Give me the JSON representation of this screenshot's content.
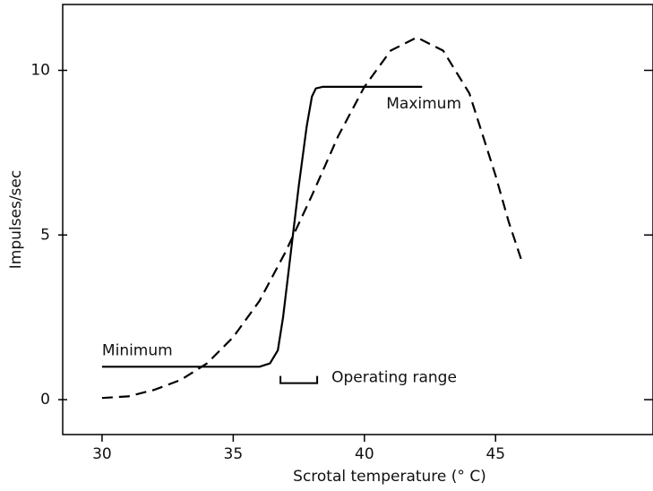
{
  "chart_data": {
    "type": "line",
    "x_label": "Scrotal temperature (° C)",
    "y_label": "Impulses/sec",
    "xlim": [
      28.5,
      51
    ],
    "xticks": [
      30,
      35,
      40,
      45
    ],
    "ylim": [
      -1.06,
      12
    ],
    "yticks": [
      0,
      5,
      10
    ],
    "series": [
      {
        "style": "solid",
        "color": "#000000",
        "x": [
          30,
          36.0,
          36.4,
          36.7,
          36.9,
          37.2,
          37.5,
          37.8,
          38.0,
          38.15,
          38.4,
          42.2
        ],
        "values": [
          1.0,
          1.0,
          1.1,
          1.5,
          2.5,
          4.5,
          6.5,
          8.3,
          9.2,
          9.45,
          9.5,
          9.5
        ]
      },
      {
        "style": "dashed",
        "color": "#000000",
        "x": [
          30,
          31,
          32,
          33,
          34,
          35,
          36,
          37,
          38,
          39,
          40,
          41,
          42,
          43,
          44,
          45,
          45.5,
          46
        ],
        "values": [
          0.05,
          0.1,
          0.3,
          0.6,
          1.1,
          1.9,
          3.0,
          4.5,
          6.2,
          8.0,
          9.5,
          10.6,
          11.0,
          10.6,
          9.3,
          6.8,
          5.4,
          4.2
        ]
      }
    ],
    "annotations": {
      "minimum": "Minimum",
      "maximum": "Maximum"
    },
    "operating_range": {
      "label": "Operating range",
      "from": 36.8,
      "to": 38.2,
      "y": 0.5
    }
  }
}
